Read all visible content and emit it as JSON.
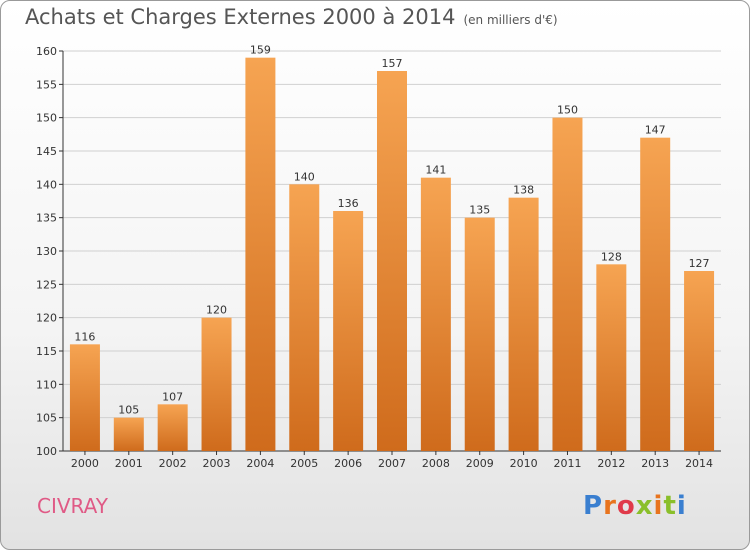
{
  "title": "Achats et Charges Externes 2000 à 2014",
  "subtitle": "(en milliers d'€)",
  "commune": "CIVRAY",
  "logo": {
    "text": "Proxiti",
    "colors": [
      "#3a7fd0",
      "#e8741e",
      "#e03a4a",
      "#8abf2a",
      "#e8741e",
      "#8abf2a",
      "#3a7fd0"
    ]
  },
  "colors": {
    "bar_top": "#f6a452",
    "bar_bottom": "#cf6b1c",
    "commune": "#e05a86"
  },
  "chart_data": {
    "type": "bar",
    "categories": [
      "2000",
      "2001",
      "2002",
      "2003",
      "2004",
      "2005",
      "2006",
      "2007",
      "2008",
      "2009",
      "2010",
      "2011",
      "2012",
      "2013",
      "2014"
    ],
    "values": [
      116,
      105,
      107,
      120,
      159,
      140,
      136,
      157,
      141,
      135,
      138,
      150,
      128,
      147,
      127
    ],
    "ylim": [
      100,
      160
    ],
    "yticks": [
      100,
      105,
      110,
      115,
      120,
      125,
      130,
      135,
      140,
      145,
      150,
      155,
      160
    ],
    "grid": true,
    "title": "Achats et Charges Externes 2000 à 2014",
    "subtitle": "(en milliers d'€)"
  }
}
